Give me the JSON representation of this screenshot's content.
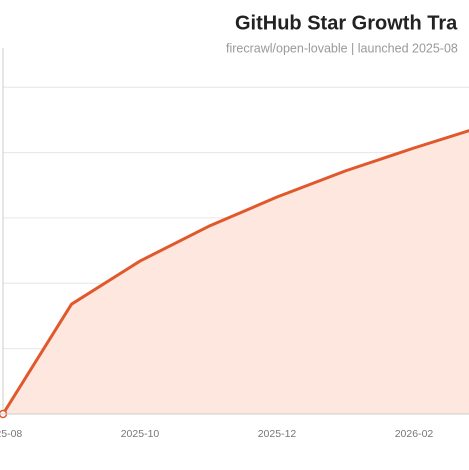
{
  "chart_data": {
    "type": "area",
    "title": "GitHub Star Growth Tra",
    "subtitle": "firecrawl/open-lovable | launched 2025-08",
    "x": [
      "2025-08",
      "2025-09",
      "2025-10",
      "2025-11",
      "2025-12",
      "2026-01",
      "2026-02",
      "2026-03"
    ],
    "values": [
      0,
      1.68,
      2.34,
      2.87,
      3.32,
      3.72,
      4.07,
      4.4
    ],
    "xticks": [
      "2025-08",
      "2025-10",
      "2025-12",
      "2026-02"
    ],
    "ylim": [
      0,
      5.6
    ],
    "yticks": [
      0,
      1,
      2,
      3,
      4,
      5
    ],
    "grid": true,
    "color": "#e0582b",
    "fill_color": "#fde7de"
  }
}
